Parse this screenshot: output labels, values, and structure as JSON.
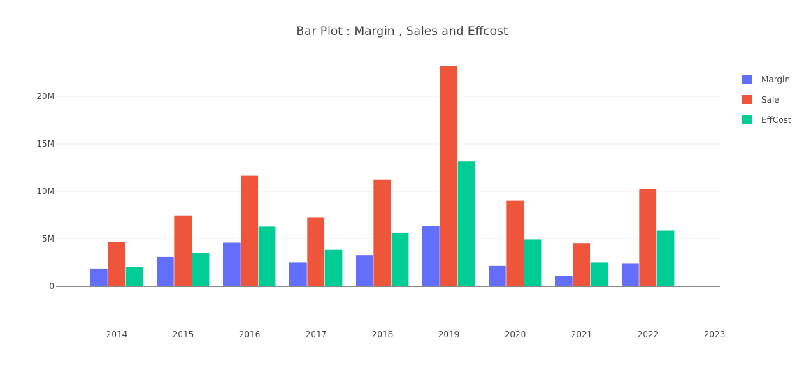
{
  "chart_data": {
    "type": "bar",
    "title": "Bar Plot : Margin , Sales and Effcost",
    "xlabel": "",
    "ylabel": "",
    "categories": [
      "2014",
      "2015",
      "2016",
      "2017",
      "2018",
      "2019",
      "2020",
      "2021",
      "2022",
      "2023"
    ],
    "series": [
      {
        "name": "Margin",
        "color": "#636efa",
        "values": [
          1.85,
          3.1,
          4.6,
          2.55,
          3.3,
          6.35,
          2.15,
          1.05,
          2.4,
          null
        ]
      },
      {
        "name": "Sale",
        "color": "#ef553b",
        "values": [
          4.65,
          7.45,
          11.65,
          7.25,
          11.2,
          23.2,
          9.0,
          4.55,
          10.25,
          null
        ]
      },
      {
        "name": "EffCost",
        "color": "#00cc96",
        "values": [
          2.05,
          3.5,
          6.3,
          3.85,
          5.6,
          13.15,
          4.9,
          2.55,
          5.85,
          null
        ]
      }
    ],
    "ylim": [
      -2.2,
      25
    ],
    "y_ticks": [
      0,
      5,
      10,
      15,
      20
    ],
    "y_tick_labels": [
      "0",
      "5M",
      "10M",
      "15M",
      "20M"
    ],
    "grid": true,
    "legend_position": "right-top",
    "barmode": "group"
  }
}
